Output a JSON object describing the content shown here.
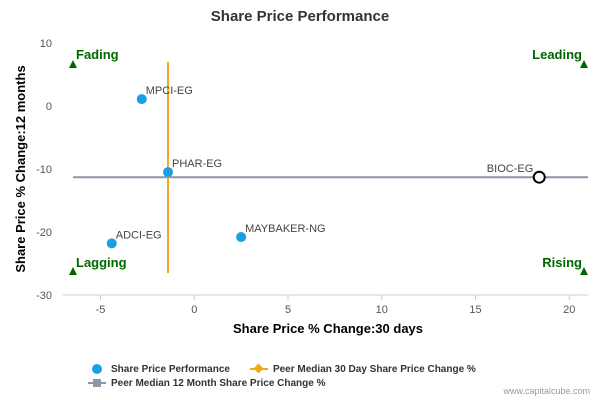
{
  "chart_data": {
    "type": "scatter",
    "title": "Share Price Performance",
    "xlabel": "Share Price % Change:30 days",
    "ylabel": "Share Price % Change:12 months",
    "xlim": [
      -7,
      21
    ],
    "ylim": [
      -30,
      10
    ],
    "xticks": [
      -5,
      0,
      5,
      10,
      15,
      20
    ],
    "yticks": [
      10,
      0,
      -10,
      -20,
      -30
    ],
    "points": [
      {
        "label": "MPCI-EG",
        "x": -2.8,
        "y": 1.1,
        "style": "filled"
      },
      {
        "label": "PHAR-EG",
        "x": -1.4,
        "y": -10.5,
        "style": "filled"
      },
      {
        "label": "ADCI-EG",
        "x": -4.4,
        "y": -21.8,
        "style": "filled"
      },
      {
        "label": "MAYBAKER-NG",
        "x": 2.5,
        "y": -20.8,
        "style": "filled"
      },
      {
        "label": "BIOC-EG",
        "x": 18.4,
        "y": -11.3,
        "style": "hollow"
      }
    ],
    "peer_median_30day": -1.4,
    "peer_median_12month": -11.3,
    "quadrants": {
      "top_left": "Fading",
      "top_right": "Leading",
      "bottom_left": "Lagging",
      "bottom_right": "Rising"
    },
    "grid": false,
    "legend_position": "bottom",
    "colors": {
      "points": "#1a9ee6",
      "vertical_median": "#f5a623",
      "horizontal_median": "#8e96a8",
      "quadrant": "#006600"
    }
  },
  "legend": {
    "items": [
      "Share Price Performance",
      "Peer Median 30 Day Share Price Change %",
      "Peer Median 12 Month Share Price Change %"
    ]
  },
  "credit": "www.capitalcube.com"
}
